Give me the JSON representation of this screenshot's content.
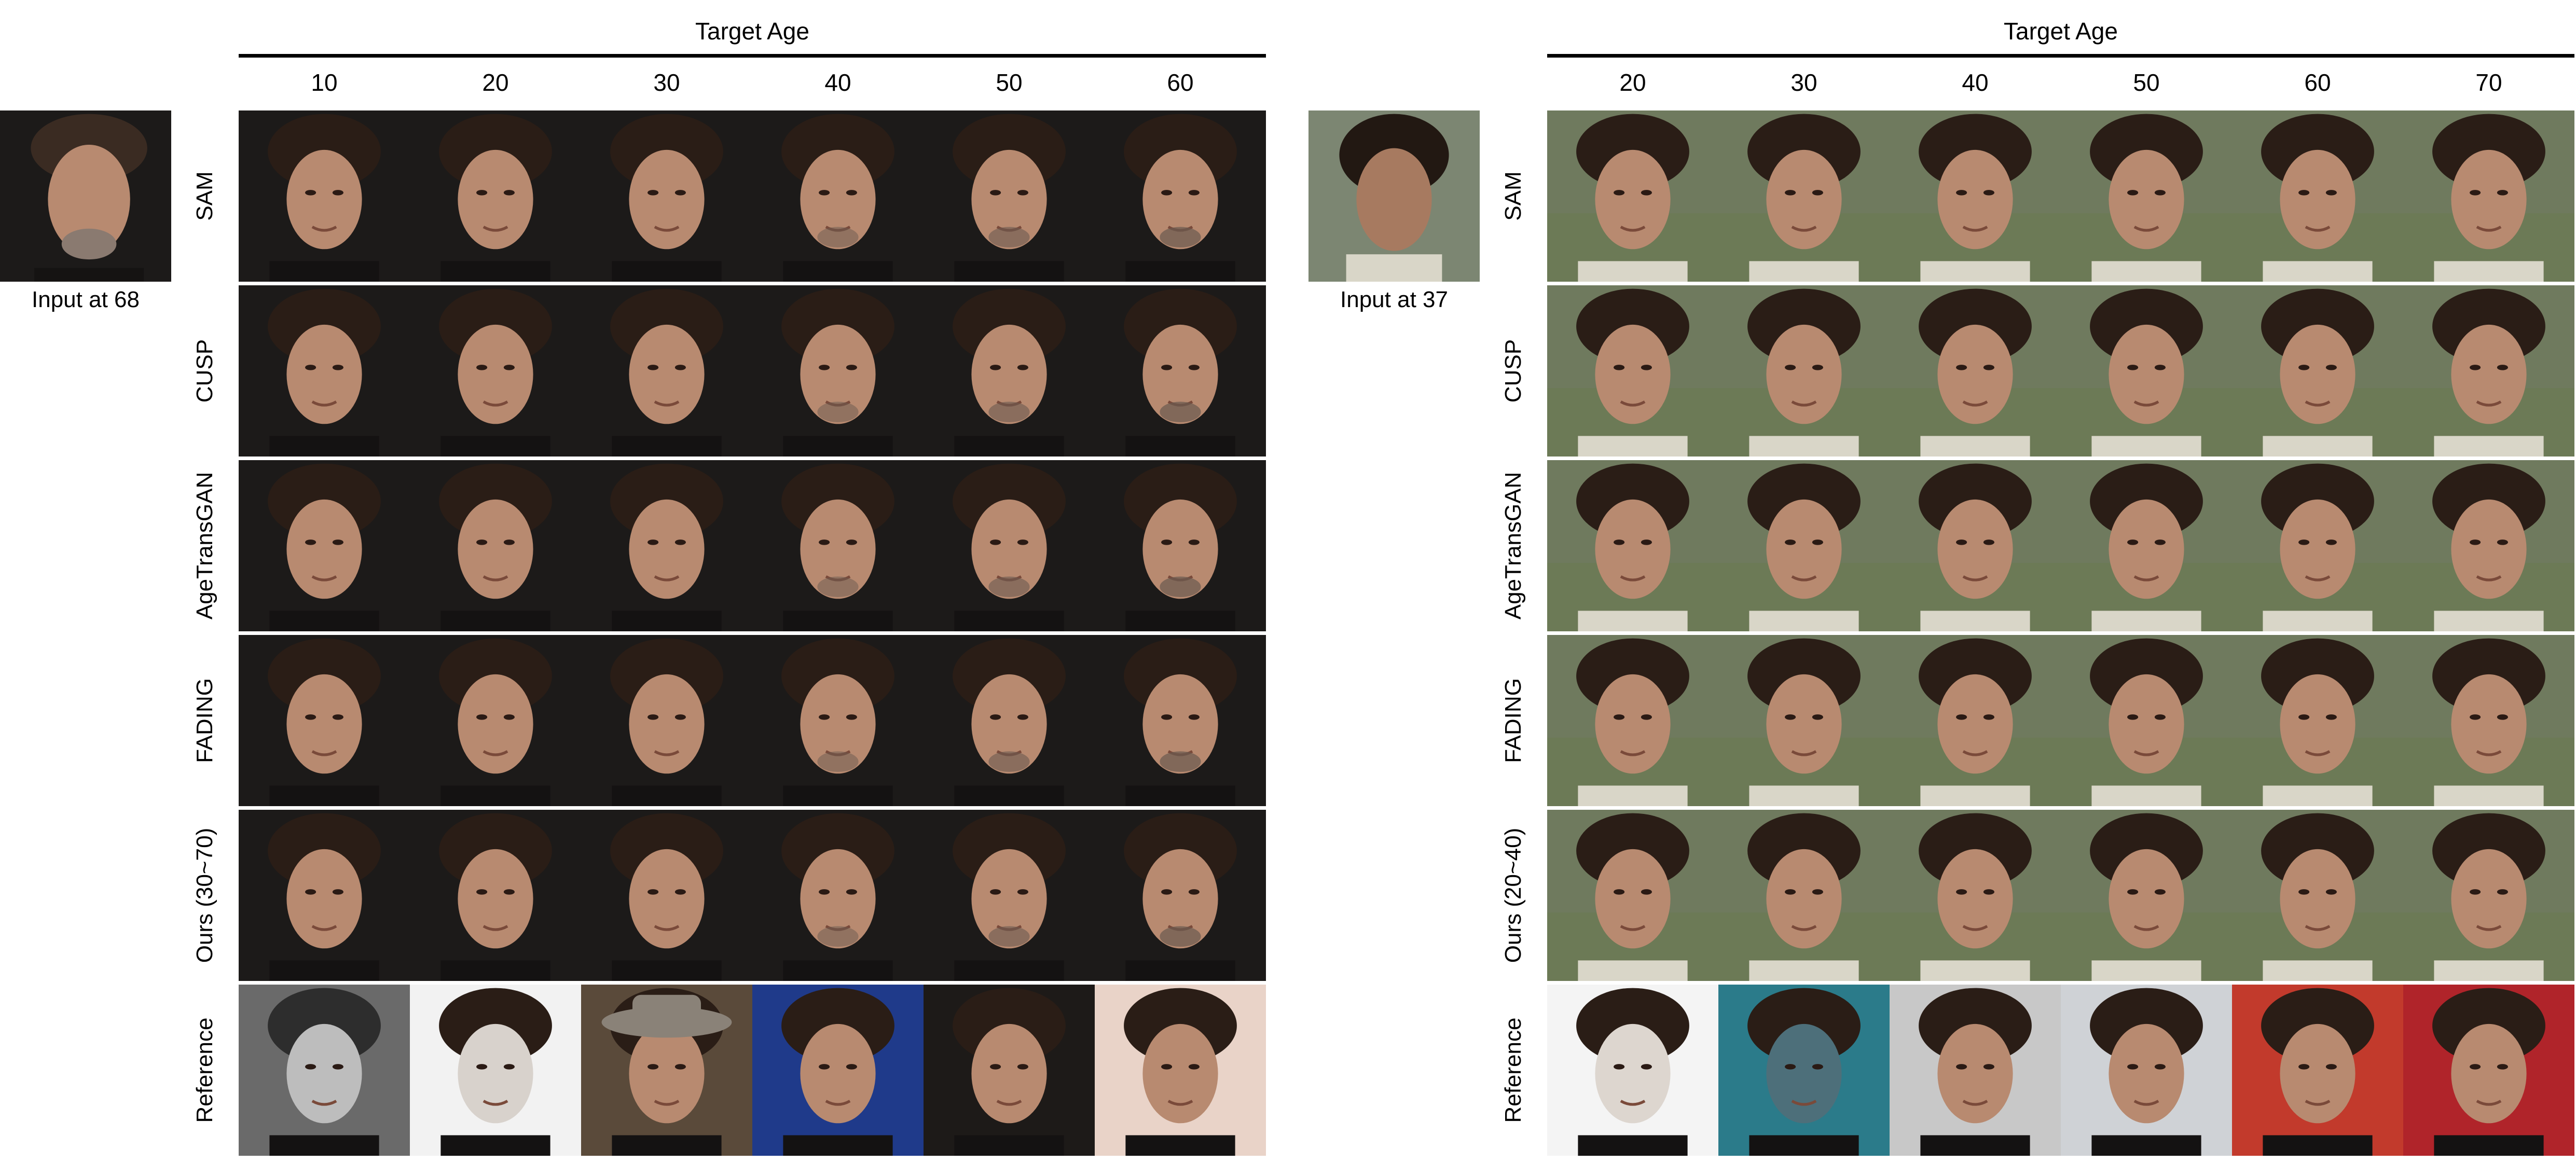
{
  "left_panel": {
    "title": "Target Age",
    "ages": [
      "10",
      "20",
      "30",
      "40",
      "50",
      "60"
    ],
    "input_caption": "Input at 68",
    "rows": [
      {
        "label": "SAM"
      },
      {
        "label": "CUSP"
      },
      {
        "label": "AgeTransGAN"
      },
      {
        "label": "FADING"
      },
      {
        "label": "Ours (30~70)"
      },
      {
        "label": "Reference"
      }
    ]
  },
  "right_panel": {
    "title": "Target Age",
    "ages": [
      "20",
      "30",
      "40",
      "50",
      "60",
      "70"
    ],
    "input_caption": "Input at 37",
    "rows": [
      {
        "label": "SAM"
      },
      {
        "label": "CUSP"
      },
      {
        "label": "AgeTransGAN"
      },
      {
        "label": "FADING"
      },
      {
        "label": "Ours (20~40)"
      },
      {
        "label": "Reference"
      }
    ]
  },
  "palette": {
    "left_bg": "#1c1a19",
    "right_bg": "#6f7a5e",
    "skin": "#b88a70",
    "hair": "#2a1d16",
    "shirt_right": "#d9d6c8"
  }
}
